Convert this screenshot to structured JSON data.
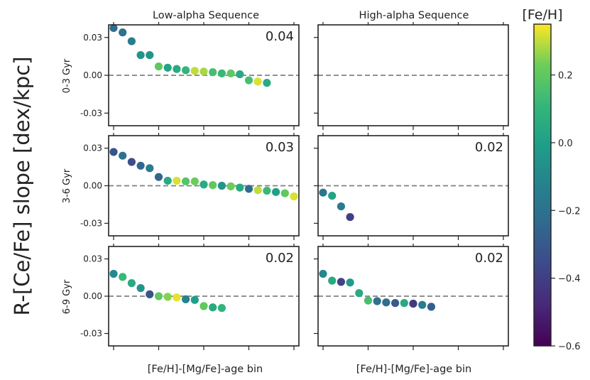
{
  "chart_data": {
    "type": "scatter",
    "ylabel": "R-[Ce/Fe] slope [dex/kpc]",
    "xlabel": "[Fe/H]-[Mg/Fe]-age bin",
    "ylim": [
      -0.04,
      0.04
    ],
    "yticks": [
      -0.03,
      0.0,
      0.03
    ],
    "ytick_labels": [
      "-0.03",
      "0.00",
      "0.03"
    ],
    "xlim": [
      0,
      20
    ],
    "xticks": [
      0,
      5,
      10,
      15,
      20
    ],
    "reference_line": 0.0,
    "columns": [
      "Low-alpha Sequence",
      "High-alpha Sequence"
    ],
    "rows": [
      "0-3 Gyr",
      "3-6 Gyr",
      "6-9 Gyr"
    ],
    "colorbar": {
      "title": "[Fe/H]",
      "range": [
        -0.6,
        0.35
      ],
      "ticks": [
        0.2,
        0.0,
        -0.2,
        -0.4,
        -0.6
      ],
      "tick_labels": [
        "0.2",
        "0.0",
        "−0.2",
        "−0.4",
        "−0.6"
      ]
    },
    "panels": [
      {
        "row": 0,
        "col": 0,
        "annotation": "0.04",
        "points": [
          {
            "x": 0,
            "y": 0.0375,
            "feh": -0.22
          },
          {
            "x": 1,
            "y": 0.034,
            "feh": -0.2
          },
          {
            "x": 2,
            "y": 0.027,
            "feh": -0.15
          },
          {
            "x": 3,
            "y": 0.016,
            "feh": -0.05
          },
          {
            "x": 4,
            "y": 0.016,
            "feh": -0.05
          },
          {
            "x": 5,
            "y": 0.007,
            "feh": 0.2
          },
          {
            "x": 6,
            "y": 0.006,
            "feh": 0.02
          },
          {
            "x": 7,
            "y": 0.005,
            "feh": 0.05
          },
          {
            "x": 8,
            "y": 0.004,
            "feh": 0.1
          },
          {
            "x": 9,
            "y": 0.0035,
            "feh": 0.3
          },
          {
            "x": 10,
            "y": 0.003,
            "feh": 0.28
          },
          {
            "x": 11,
            "y": 0.0025,
            "feh": 0.15
          },
          {
            "x": 12,
            "y": 0.0015,
            "feh": 0.12
          },
          {
            "x": 13,
            "y": 0.0015,
            "feh": 0.2
          },
          {
            "x": 14,
            "y": 0.0008,
            "feh": 0.05
          },
          {
            "x": 15,
            "y": -0.004,
            "feh": 0.15
          },
          {
            "x": 16,
            "y": -0.005,
            "feh": 0.32
          },
          {
            "x": 17,
            "y": -0.006,
            "feh": 0.05
          }
        ]
      },
      {
        "row": 0,
        "col": 1,
        "annotation": "",
        "points": []
      },
      {
        "row": 1,
        "col": 0,
        "annotation": "0.03",
        "points": [
          {
            "x": 0,
            "y": 0.027,
            "feh": -0.32
          },
          {
            "x": 1,
            "y": 0.024,
            "feh": -0.2
          },
          {
            "x": 2,
            "y": 0.019,
            "feh": -0.34
          },
          {
            "x": 3,
            "y": 0.016,
            "feh": -0.25
          },
          {
            "x": 4,
            "y": 0.014,
            "feh": -0.15
          },
          {
            "x": 5,
            "y": 0.007,
            "feh": -0.25
          },
          {
            "x": 6,
            "y": 0.004,
            "feh": 0.05
          },
          {
            "x": 7,
            "y": 0.004,
            "feh": 0.32
          },
          {
            "x": 8,
            "y": 0.0035,
            "feh": 0.18
          },
          {
            "x": 9,
            "y": 0.0035,
            "feh": 0.22
          },
          {
            "x": 10,
            "y": 0.001,
            "feh": 0.05
          },
          {
            "x": 11,
            "y": 0.0005,
            "feh": 0.2
          },
          {
            "x": 12,
            "y": 0.0,
            "feh": -0.05
          },
          {
            "x": 13,
            "y": -0.0005,
            "feh": 0.22
          },
          {
            "x": 14,
            "y": -0.0015,
            "feh": 0.05
          },
          {
            "x": 15,
            "y": -0.0025,
            "feh": -0.22
          },
          {
            "x": 16,
            "y": -0.0035,
            "feh": 0.3
          },
          {
            "x": 17,
            "y": -0.004,
            "feh": 0.12
          },
          {
            "x": 18,
            "y": -0.005,
            "feh": 0.0
          },
          {
            "x": 19,
            "y": -0.006,
            "feh": 0.2
          },
          {
            "x": 20,
            "y": -0.0085,
            "feh": 0.32
          }
        ]
      },
      {
        "row": 1,
        "col": 1,
        "annotation": "0.02",
        "points": [
          {
            "x": 0,
            "y": -0.0055,
            "feh": -0.18
          },
          {
            "x": 1,
            "y": -0.008,
            "feh": 0.02
          },
          {
            "x": 2,
            "y": -0.0165,
            "feh": -0.15
          },
          {
            "x": 3,
            "y": -0.025,
            "feh": -0.4
          }
        ]
      },
      {
        "row": 2,
        "col": 0,
        "annotation": "0.02",
        "points": [
          {
            "x": 0,
            "y": 0.018,
            "feh": -0.1
          },
          {
            "x": 1,
            "y": 0.0155,
            "feh": 0.12
          },
          {
            "x": 2,
            "y": 0.0105,
            "feh": 0.05
          },
          {
            "x": 3,
            "y": 0.0065,
            "feh": -0.05
          },
          {
            "x": 4,
            "y": 0.0015,
            "feh": -0.32
          },
          {
            "x": 5,
            "y": 0.0,
            "feh": 0.2
          },
          {
            "x": 6,
            "y": -0.0005,
            "feh": 0.25
          },
          {
            "x": 7,
            "y": -0.001,
            "feh": 0.33
          },
          {
            "x": 8,
            "y": -0.0025,
            "feh": -0.12
          },
          {
            "x": 9,
            "y": -0.003,
            "feh": 0.0
          },
          {
            "x": 10,
            "y": -0.008,
            "feh": 0.2
          },
          {
            "x": 11,
            "y": -0.009,
            "feh": 0.05
          },
          {
            "x": 12,
            "y": -0.0095,
            "feh": 0.1
          }
        ]
      },
      {
        "row": 2,
        "col": 1,
        "annotation": "0.02",
        "points": [
          {
            "x": 0,
            "y": 0.018,
            "feh": -0.1
          },
          {
            "x": 1,
            "y": 0.0125,
            "feh": 0.05
          },
          {
            "x": 2,
            "y": 0.0115,
            "feh": -0.38
          },
          {
            "x": 3,
            "y": 0.011,
            "feh": -0.02
          },
          {
            "x": 4,
            "y": 0.0025,
            "feh": 0.05
          },
          {
            "x": 5,
            "y": -0.0035,
            "feh": 0.15
          },
          {
            "x": 6,
            "y": -0.004,
            "feh": -0.2
          },
          {
            "x": 7,
            "y": -0.005,
            "feh": -0.22
          },
          {
            "x": 8,
            "y": -0.0055,
            "feh": -0.3
          },
          {
            "x": 9,
            "y": -0.0055,
            "feh": 0.05
          },
          {
            "x": 10,
            "y": -0.006,
            "feh": -0.42
          },
          {
            "x": 11,
            "y": -0.007,
            "feh": -0.15
          },
          {
            "x": 12,
            "y": -0.0085,
            "feh": -0.28
          }
        ]
      }
    ]
  }
}
